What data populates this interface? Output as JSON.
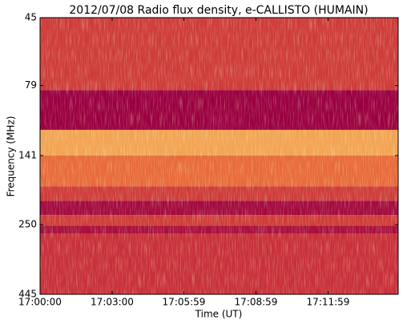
{
  "chart_data": {
    "type": "spectrogram",
    "title": "2012/07/08  Radio flux density, e-CALLISTO (HUMAIN)",
    "xlabel": "Time (UT)",
    "ylabel": "Frequency (MHz)",
    "xlim": [
      0,
      894
    ],
    "xticks": [
      {
        "value": 0,
        "label": "17:00:00"
      },
      {
        "value": 180,
        "label": "17:03:00"
      },
      {
        "value": 359,
        "label": "17:05:59"
      },
      {
        "value": 539,
        "label": "17:08:59"
      },
      {
        "value": 719,
        "label": "17:11:59"
      }
    ],
    "ylim": [
      45,
      445
    ],
    "yscale": "log",
    "y_inverted": true,
    "yticks": [
      45,
      79,
      141,
      250,
      445
    ],
    "zlim": [
      0,
      1
    ],
    "colormap": [
      "#9a0040",
      "#c8303a",
      "#e86a3a",
      "#f5b25a",
      "#fbe9a8"
    ],
    "bands": [
      {
        "from": 45,
        "to": 82,
        "level": 0.3
      },
      {
        "from": 82,
        "to": 114,
        "level": 0
      },
      {
        "from": 114,
        "to": 141,
        "level": 0.7
      },
      {
        "from": 141,
        "to": 182,
        "level": 0.5
      },
      {
        "from": 182,
        "to": 205,
        "level": 0.3
      },
      {
        "from": 205,
        "to": 231,
        "level": 0.05
      },
      {
        "from": 231,
        "to": 252,
        "level": 0.3
      },
      {
        "from": 252,
        "to": 270,
        "level": 0.08
      },
      {
        "from": 270,
        "to": 445,
        "level": 0.25
      }
    ]
  }
}
